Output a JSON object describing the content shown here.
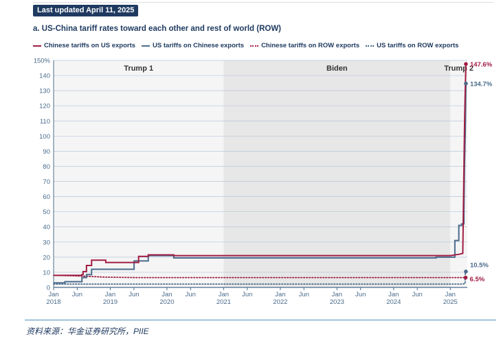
{
  "header": {
    "badge": "Last updated April 11, 2025"
  },
  "source": "资料来源：华金证券研究所，PIIE",
  "chart_data": {
    "type": "line",
    "title": "a. US-China tariff rates toward each other and rest of world (ROW)",
    "ylim": [
      0,
      150
    ],
    "yticks": [
      "0",
      "10",
      "20",
      "30",
      "40",
      "50",
      "60",
      "70",
      "80",
      "90",
      "100",
      "110",
      "120",
      "130",
      "140",
      "150%"
    ],
    "xlim": [
      2018.0,
      2025.3
    ],
    "xticks": [
      {
        "x": 2018.0,
        "line1": "Jan",
        "line2": "2018"
      },
      {
        "x": 2018.417,
        "line1": "Jun",
        "line2": ""
      },
      {
        "x": 2019.0,
        "line1": "Jan",
        "line2": "2019"
      },
      {
        "x": 2019.417,
        "line1": "Jun",
        "line2": ""
      },
      {
        "x": 2020.0,
        "line1": "Jan",
        "line2": "2020"
      },
      {
        "x": 2020.417,
        "line1": "Jun",
        "line2": ""
      },
      {
        "x": 2021.0,
        "line1": "Jan",
        "line2": "2021"
      },
      {
        "x": 2021.417,
        "line1": "Jun",
        "line2": ""
      },
      {
        "x": 2022.0,
        "line1": "Jan",
        "line2": "2022"
      },
      {
        "x": 2022.417,
        "line1": "Jun",
        "line2": ""
      },
      {
        "x": 2023.0,
        "line1": "Jan",
        "line2": "2023"
      },
      {
        "x": 2023.417,
        "line1": "Jun",
        "line2": ""
      },
      {
        "x": 2024.0,
        "line1": "Jan",
        "line2": "2024"
      },
      {
        "x": 2024.417,
        "line1": "Jun",
        "line2": ""
      },
      {
        "x": 2025.0,
        "line1": "Jan",
        "line2": "2025"
      }
    ],
    "periods": [
      {
        "name": "Trump 1",
        "start": 2018.0,
        "end": 2021.0,
        "fill": "#f5f5f5"
      },
      {
        "name": "Biden",
        "start": 2021.0,
        "end": 2025.0,
        "fill": "#e7e7e7"
      },
      {
        "name": "Trump 2",
        "start": 2025.0,
        "end": 2025.3,
        "fill": "#f5f5f5"
      }
    ],
    "series": [
      {
        "name": "Chinese tariffs on US exports",
        "color": "#a01c43",
        "style": "solid",
        "end_label": "147.6%",
        "points": [
          [
            2018.0,
            8
          ],
          [
            2018.5,
            8
          ],
          [
            2018.5,
            8.5
          ],
          [
            2018.52,
            8.5
          ],
          [
            2018.52,
            10.5
          ],
          [
            2018.58,
            10.5
          ],
          [
            2018.58,
            14.5
          ],
          [
            2018.67,
            14.5
          ],
          [
            2018.67,
            18
          ],
          [
            2018.92,
            18
          ],
          [
            2018.92,
            16.5
          ],
          [
            2019.5,
            16.5
          ],
          [
            2019.5,
            20.5
          ],
          [
            2019.67,
            20.5
          ],
          [
            2019.67,
            21.5
          ],
          [
            2020.12,
            21.5
          ],
          [
            2020.12,
            21
          ],
          [
            2025.0,
            21
          ],
          [
            2025.08,
            21.5
          ],
          [
            2025.17,
            22
          ],
          [
            2025.22,
            22.5
          ],
          [
            2025.25,
            105
          ],
          [
            2025.26,
            125
          ],
          [
            2025.275,
            147.6
          ]
        ]
      },
      {
        "name": "US tariffs on Chinese exports",
        "color": "#4a6b8c",
        "style": "solid",
        "end_label": "134.7%",
        "points": [
          [
            2018.0,
            3
          ],
          [
            2018.2,
            3
          ],
          [
            2018.2,
            3.8
          ],
          [
            2018.5,
            3.8
          ],
          [
            2018.5,
            6.5
          ],
          [
            2018.58,
            6.5
          ],
          [
            2018.58,
            8.5
          ],
          [
            2018.67,
            8.5
          ],
          [
            2018.67,
            12
          ],
          [
            2019.42,
            12
          ],
          [
            2019.42,
            17.5
          ],
          [
            2019.67,
            17.5
          ],
          [
            2019.67,
            21
          ],
          [
            2020.12,
            21
          ],
          [
            2020.12,
            19.5
          ],
          [
            2024.75,
            19.5
          ],
          [
            2024.75,
            20
          ],
          [
            2025.08,
            20
          ],
          [
            2025.08,
            31
          ],
          [
            2025.15,
            31
          ],
          [
            2025.15,
            41
          ],
          [
            2025.2,
            41
          ],
          [
            2025.2,
            42
          ],
          [
            2025.24,
            42
          ],
          [
            2025.24,
            50
          ],
          [
            2025.25,
            79
          ],
          [
            2025.265,
            104
          ],
          [
            2025.275,
            134.7
          ]
        ]
      },
      {
        "name": "Chinese tariffs on ROW exports",
        "color": "#a01c43",
        "style": "dotted",
        "end_label": "6.5%",
        "points": [
          [
            2018.0,
            8
          ],
          [
            2018.5,
            7.5
          ],
          [
            2018.9,
            6.8
          ],
          [
            2019.5,
            6.5
          ],
          [
            2025.27,
            6.5
          ]
        ]
      },
      {
        "name": "US tariffs on ROW exports",
        "color": "#4a6b8c",
        "style": "dotted",
        "end_label": "10.5%",
        "points": [
          [
            2018.0,
            2.2
          ],
          [
            2025.2,
            2.2
          ],
          [
            2025.26,
            2.5
          ],
          [
            2025.265,
            10.5
          ],
          [
            2025.275,
            10.5
          ]
        ]
      }
    ]
  }
}
